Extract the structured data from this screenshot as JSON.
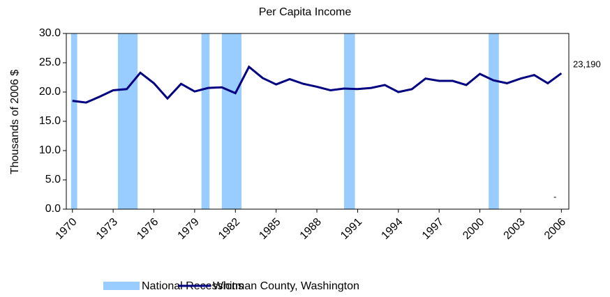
{
  "chart_data": {
    "type": "line",
    "title": "Per Capita Income",
    "y_label": "Thousands of 2006 $",
    "x": [
      1970,
      1971,
      1972,
      1973,
      1974,
      1975,
      1976,
      1977,
      1978,
      1979,
      1980,
      1981,
      1982,
      1983,
      1984,
      1985,
      1986,
      1987,
      1988,
      1989,
      1990,
      1991,
      1992,
      1993,
      1994,
      1995,
      1996,
      1997,
      1998,
      1999,
      2000,
      2001,
      2002,
      2003,
      2004,
      2005,
      2006
    ],
    "series": [
      {
        "name": "Whitman County, Washington",
        "color": "#000080",
        "values": [
          18.5,
          18.2,
          19.2,
          20.3,
          20.5,
          23.3,
          21.5,
          18.9,
          21.4,
          20.1,
          20.7,
          20.8,
          19.8,
          24.3,
          22.4,
          21.3,
          22.2,
          21.4,
          20.9,
          20.3,
          20.6,
          20.5,
          20.7,
          21.2,
          20.0,
          20.5,
          22.3,
          21.9,
          21.9,
          21.2,
          23.1,
          22.0,
          21.5,
          22.3,
          22.9,
          21.5,
          23.19
        ],
        "value_labels": [
          null,
          null,
          null,
          null,
          null,
          null,
          null,
          null,
          null,
          null,
          null,
          null,
          null,
          null,
          null,
          null,
          null,
          null,
          null,
          null,
          null,
          null,
          null,
          null,
          null,
          null,
          null,
          null,
          null,
          null,
          null,
          null,
          null,
          null,
          null,
          null,
          "23,190"
        ]
      }
    ],
    "recessions": {
      "name": "National Recessions",
      "color": "#99ccff",
      "spans": [
        [
          1969.9,
          1970.35
        ],
        [
          1973.35,
          1974.8
        ],
        [
          1979.5,
          1980.1
        ],
        [
          1981.0,
          1982.45
        ],
        [
          1990.0,
          1990.8
        ],
        [
          2000.65,
          2001.4
        ]
      ]
    },
    "annotation": "-",
    "xlim": [
      1969.55,
      2006.55
    ],
    "xticks": [
      1970,
      1973,
      1976,
      1979,
      1982,
      1985,
      1988,
      1991,
      1994,
      1997,
      2000,
      2003,
      2006
    ],
    "ylim": [
      0,
      30
    ],
    "yticks": [
      {
        "value": 0,
        "label": "0.0"
      },
      {
        "value": 5,
        "label": "5.0"
      },
      {
        "value": 10,
        "label": "10.0"
      },
      {
        "value": 15,
        "label": "15.0"
      },
      {
        "value": 20,
        "label": "20.0"
      },
      {
        "value": 25,
        "label": "25.0"
      },
      {
        "value": 30,
        "label": "30.0"
      }
    ]
  }
}
